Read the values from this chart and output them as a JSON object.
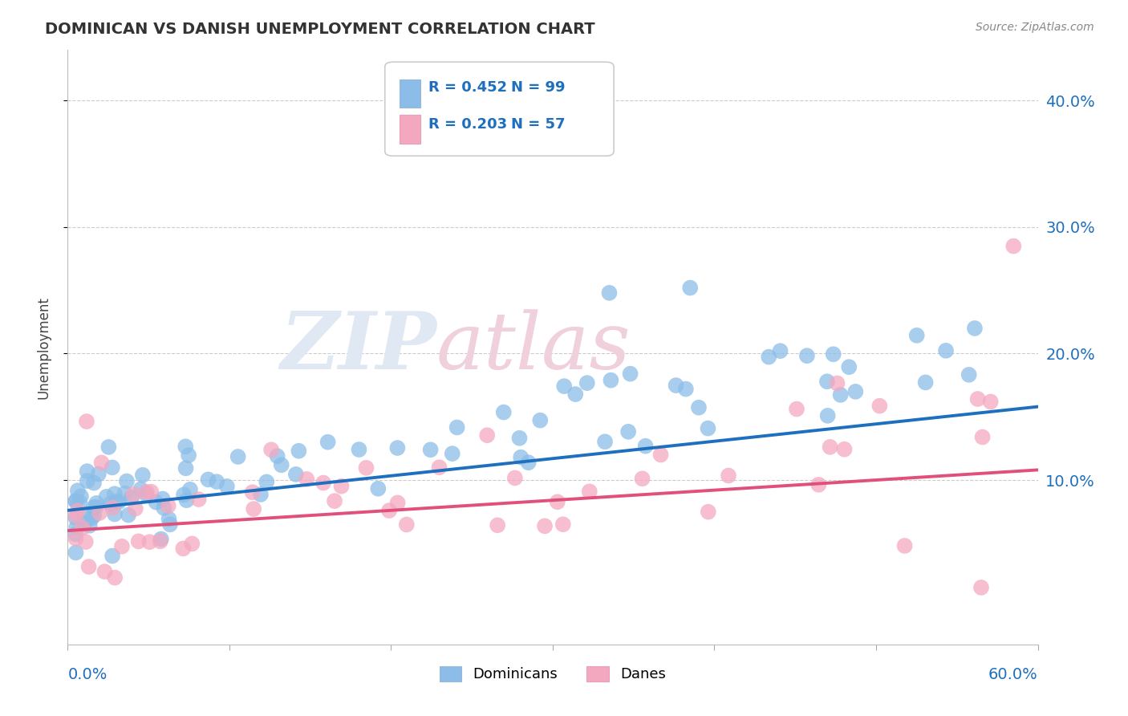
{
  "title": "DOMINICAN VS DANISH UNEMPLOYMENT CORRELATION CHART",
  "source_text": "Source: ZipAtlas.com",
  "ylabel": "Unemployment",
  "right_yticks": [
    "40.0%",
    "30.0%",
    "20.0%",
    "10.0%"
  ],
  "right_ytick_vals": [
    0.4,
    0.3,
    0.2,
    0.1
  ],
  "xlim": [
    0.0,
    0.6
  ],
  "ylim": [
    -0.03,
    0.44
  ],
  "dominican_color": "#8bbde8",
  "danish_color": "#f4a8c0",
  "line_blue": "#1e6fbe",
  "line_pink": "#e0507a",
  "blue_label_color": "#1e6fbe",
  "watermark_color": "#e0e8f4",
  "watermark_pink": "#f0d0dc",
  "dom_trend_start": 0.076,
  "dom_trend_end": 0.158,
  "dan_trend_start": 0.06,
  "dan_trend_end": 0.108
}
